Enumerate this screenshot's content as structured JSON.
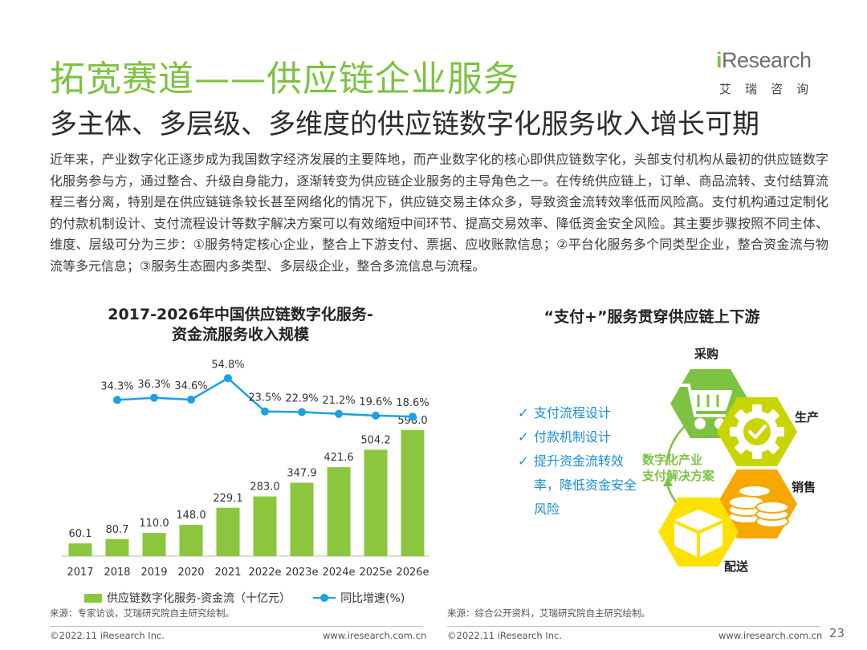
{
  "header": {
    "title": "拓宽赛道——供应链企业服务",
    "subtitle": "多主体、多层级、多维度的供应链数字化服务收入增长可期"
  },
  "logo": {
    "word_prefix": "i",
    "word_rest": "Research",
    "sub": "艾瑞咨询"
  },
  "paragraph": "近年来，产业数字化正逐步成为我国数字经济发展的主要阵地，而产业数字化的核心即供应链数字化，头部支付机构从最初的供应链数字化服务参与方，通过整合、升级自身能力，逐渐转变为供应链企业服务的主导角色之一。在传统供应链上，订单、商品流转、支付结算流程三者分离，特别是在供应链链条较长甚至网络化的情况下，供应链交易主体众多，导致资金流转效率低而风险高。支付机构通过定制化的付款机制设计、支付流程设计等数字解决方案可以有效缩短中间环节、提高交易效率、降低资金安全风险。其主要步骤按照不同主体、维度、层级可分为三步：①服务特定核心企业，整合上下游支付、票据、应收账款信息；②平台化服务多个同类型企业，整合资金流与物流等多元信息；③服务生态圈内多类型、多层级企业，整合多流信息与流程。",
  "chart_data": {
    "type": "bar",
    "title": "2017-2026年中国供应链数字化服务-资金流服务收入规模",
    "title_line1": "2017-2026年中国供应链数字化服务-",
    "title_line2": "资金流服务收入规模",
    "categories": [
      "2017",
      "2018",
      "2019",
      "2020",
      "2021",
      "2022e",
      "2023e",
      "2024e",
      "2025e",
      "2026e"
    ],
    "series": [
      {
        "name": "供应链数字化服务-资金流（十亿元）",
        "type": "bar",
        "color": "#8cc63f",
        "values": [
          60.1,
          80.7,
          110.0,
          148.0,
          229.1,
          283.0,
          347.9,
          421.6,
          504.2,
          598.0
        ],
        "labels": [
          "60.1",
          "80.7",
          "110.0",
          "148.0",
          "229.1",
          "283.0",
          "347.9",
          "421.6",
          "504.2",
          "598.0"
        ]
      },
      {
        "name": "同比增速(%)",
        "type": "line",
        "color": "#1ba1e2",
        "values": [
          null,
          34.3,
          36.3,
          34.6,
          54.8,
          23.5,
          22.9,
          21.2,
          19.6,
          18.6
        ],
        "labels": [
          "",
          "34.3%",
          "36.3%",
          "34.6%",
          "54.8%",
          "23.5%",
          "22.9%",
          "21.2%",
          "19.6%",
          "18.6%"
        ]
      }
    ],
    "legend_position": "bottom",
    "grid": false
  },
  "right_panel": {
    "title": "“支付+”服务贯穿供应链上下游",
    "checks": [
      "支付流程设计",
      "付款机制设计",
      "提升资金流转效率，降低资金安全风险"
    ],
    "center_line1": "数字化产业",
    "center_line2": "支付解决方案",
    "nodes": [
      "采购",
      "生产",
      "销售",
      "配送"
    ],
    "colors": {
      "green": "#7dc243",
      "lime": "#c9d500",
      "orange": "#f6a800",
      "yellow": "#ffe100"
    }
  },
  "sources": {
    "left": "来源：专家访谈，艾瑞研究院自主研究绘制。",
    "right": "来源：综合公开资料，艾瑞研究院自主研究绘制。"
  },
  "footer": {
    "left_copyright": "©2022.11 iResearch Inc.",
    "left_url": "www.iresearch.com.cn",
    "right_copyright": "©2022.11 iResearch Inc.",
    "right_url": "www.iresearch.com.cn",
    "page": "23"
  },
  "icons": [
    "shopping-cart-icon",
    "gear-check-icon",
    "coins-icon",
    "package-box-icon",
    "check-icon"
  ]
}
